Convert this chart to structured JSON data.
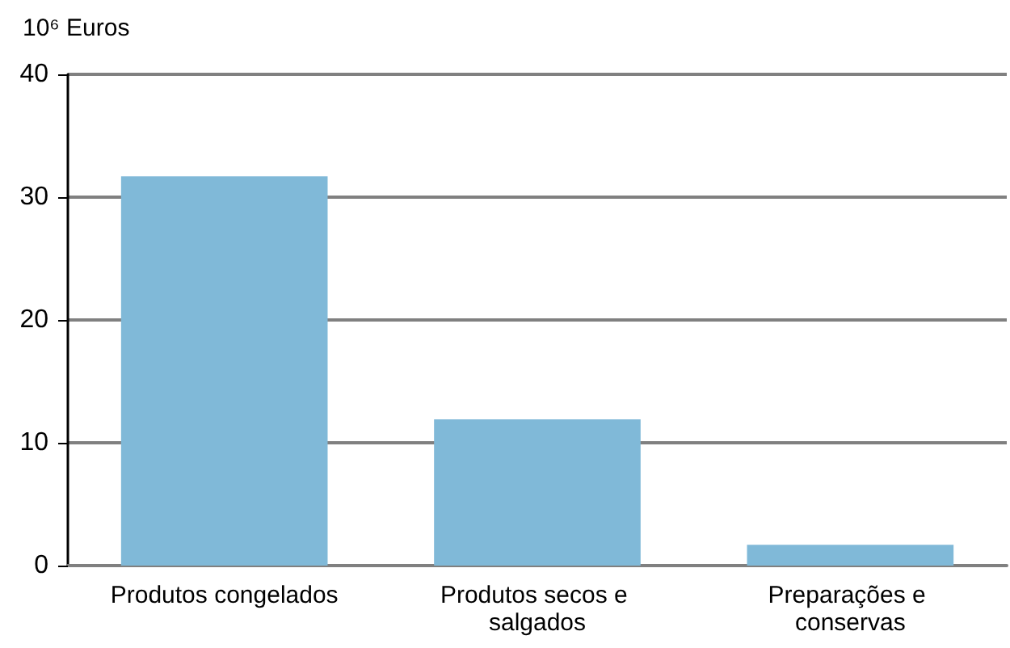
{
  "chart_data": {
    "type": "bar",
    "ylabel": "10⁶ Euros",
    "categories": [
      "Produtos congelados",
      "Produtos secos e salgados",
      "Preparações e conservas"
    ],
    "values": [
      31.7,
      11.9,
      1.7
    ],
    "color": "#80b9d8",
    "ylim": [
      0,
      40
    ],
    "yticks": [
      0,
      10,
      20,
      30,
      40
    ],
    "grid": "y"
  }
}
